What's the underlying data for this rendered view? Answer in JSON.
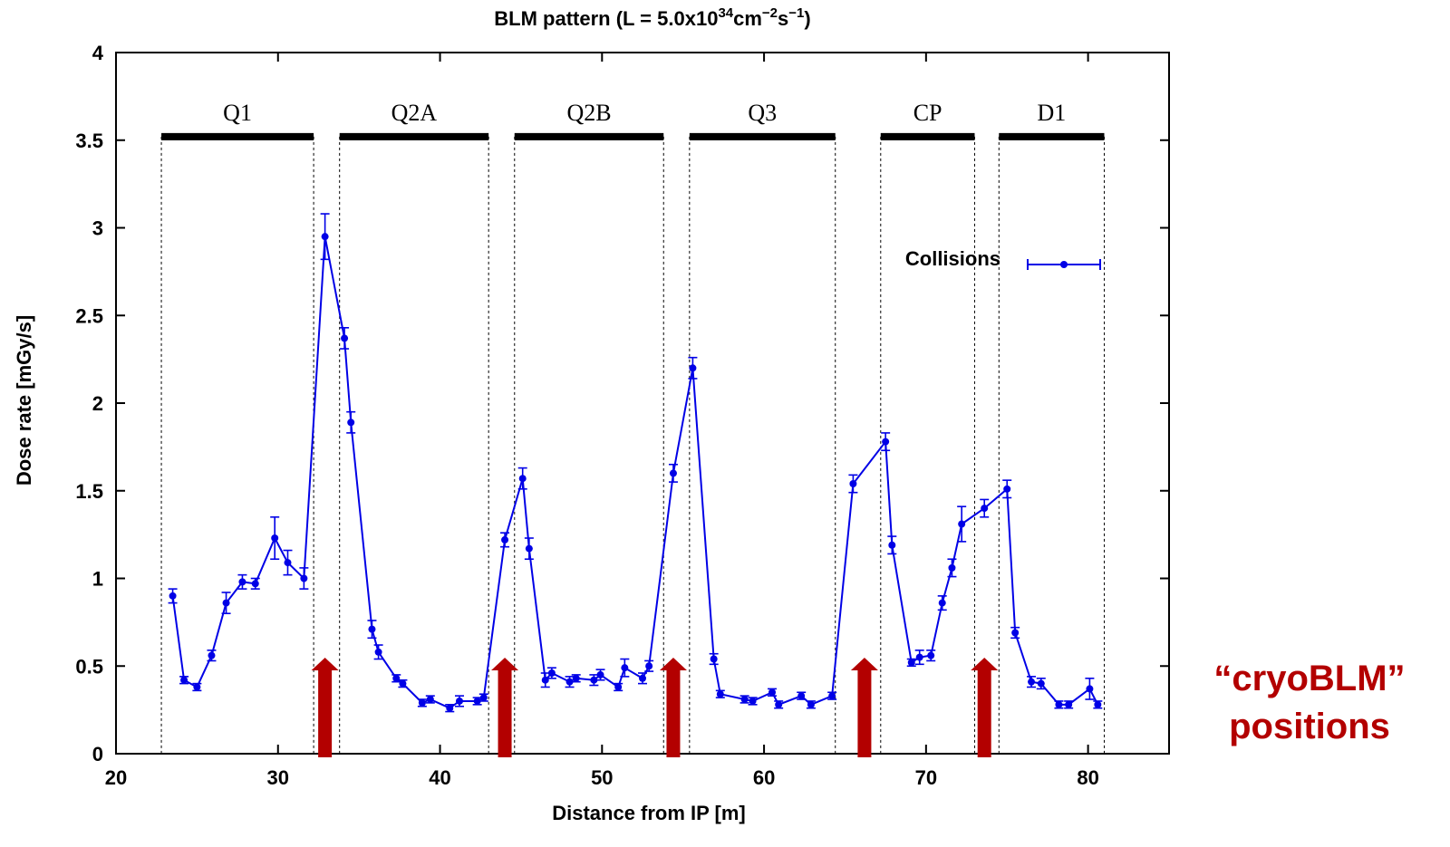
{
  "chart_data": {
    "type": "line",
    "title": "BLM pattern (L = 5.0x10",
    "title_exp1": "34",
    "title_mid": "cm",
    "title_exp2": "−2",
    "title_s": "s",
    "title_exp3": "−1",
    "title_end": ")",
    "xlabel": "Distance from IP [m]",
    "ylabel": "Dose rate [mGy/s]",
    "xlim": [
      20,
      85
    ],
    "ylim": [
      0,
      4
    ],
    "xticks": [
      20,
      30,
      40,
      50,
      60,
      70,
      80
    ],
    "yticks": [
      {
        "v": 0,
        "label": "0"
      },
      {
        "v": 0.5,
        "label": "0.5"
      },
      {
        "v": 1,
        "label": "1"
      },
      {
        "v": 1.5,
        "label": "1.5"
      },
      {
        "v": 2,
        "label": "2"
      },
      {
        "v": 2.5,
        "label": "2.5"
      },
      {
        "v": 3,
        "label": "3"
      },
      {
        "v": 3.5,
        "label": "3.5"
      },
      {
        "v": 4,
        "label": "4"
      }
    ],
    "grid": false,
    "legend_position": "top-right",
    "series": [
      {
        "name": "Collisions",
        "color": "#0000e6",
        "x": [
          23.5,
          24.2,
          25.0,
          25.9,
          26.8,
          27.8,
          28.6,
          29.8,
          30.6,
          31.6,
          32.9,
          34.1,
          34.5,
          35.8,
          36.2,
          37.3,
          37.7,
          38.9,
          39.4,
          40.6,
          41.2,
          42.3,
          42.7,
          44.0,
          45.1,
          45.5,
          46.5,
          46.9,
          48.0,
          48.4,
          49.5,
          49.9,
          51.0,
          51.4,
          52.5,
          52.9,
          54.4,
          55.6,
          56.9,
          57.3,
          58.8,
          59.3,
          60.5,
          60.9,
          62.3,
          62.9,
          64.2,
          65.5,
          67.5,
          67.9,
          69.1,
          69.6,
          70.3,
          71.0,
          71.6,
          72.2,
          73.6,
          75.0,
          75.5,
          76.5,
          77.1,
          78.2,
          78.8,
          80.1,
          80.6
        ],
        "y": [
          0.9,
          0.42,
          0.38,
          0.56,
          0.86,
          0.98,
          0.97,
          1.23,
          1.09,
          1.0,
          2.95,
          2.37,
          1.89,
          0.71,
          0.58,
          0.43,
          0.4,
          0.29,
          0.31,
          0.26,
          0.3,
          0.3,
          0.32,
          1.22,
          1.57,
          1.17,
          0.42,
          0.46,
          0.41,
          0.43,
          0.42,
          0.45,
          0.38,
          0.49,
          0.43,
          0.5,
          1.6,
          2.2,
          0.54,
          0.34,
          0.31,
          0.3,
          0.35,
          0.28,
          0.33,
          0.28,
          0.33,
          1.54,
          1.78,
          1.19,
          0.52,
          0.55,
          0.56,
          0.86,
          1.06,
          1.31,
          1.4,
          1.51,
          0.69,
          0.41,
          0.4,
          0.28,
          0.28,
          0.37,
          0.28
        ],
        "err": [
          0.04,
          0.02,
          0.02,
          0.03,
          0.06,
          0.04,
          0.03,
          0.12,
          0.07,
          0.06,
          0.13,
          0.06,
          0.06,
          0.05,
          0.04,
          0.02,
          0.02,
          0.02,
          0.02,
          0.02,
          0.03,
          0.02,
          0.02,
          0.04,
          0.06,
          0.06,
          0.04,
          0.03,
          0.03,
          0.02,
          0.03,
          0.03,
          0.02,
          0.05,
          0.03,
          0.03,
          0.05,
          0.06,
          0.03,
          0.02,
          0.02,
          0.02,
          0.02,
          0.02,
          0.02,
          0.02,
          0.02,
          0.05,
          0.05,
          0.05,
          0.02,
          0.04,
          0.03,
          0.04,
          0.05,
          0.1,
          0.05,
          0.05,
          0.03,
          0.03,
          0.03,
          0.02,
          0.02,
          0.06,
          0.02
        ]
      }
    ],
    "magnets": [
      {
        "label": "Q1",
        "x_start": 22.8,
        "x_end": 32.2
      },
      {
        "label": "Q2A",
        "x_start": 33.8,
        "x_end": 43.0
      },
      {
        "label": "Q2B",
        "x_start": 44.6,
        "x_end": 53.8
      },
      {
        "label": "Q3",
        "x_start": 55.4,
        "x_end": 64.4
      },
      {
        "label": "CP",
        "x_start": 67.2,
        "x_end": 73.0
      },
      {
        "label": "D1",
        "x_start": 74.5,
        "x_end": 81.0
      }
    ],
    "magnet_bar_y": 3.52,
    "cryoblm_positions_m": [
      32.9,
      44.0,
      54.4,
      66.2,
      73.6
    ],
    "arrow_color": "#b30000",
    "annotation_line1": "“cryoBLM”",
    "annotation_line2": "positions"
  }
}
